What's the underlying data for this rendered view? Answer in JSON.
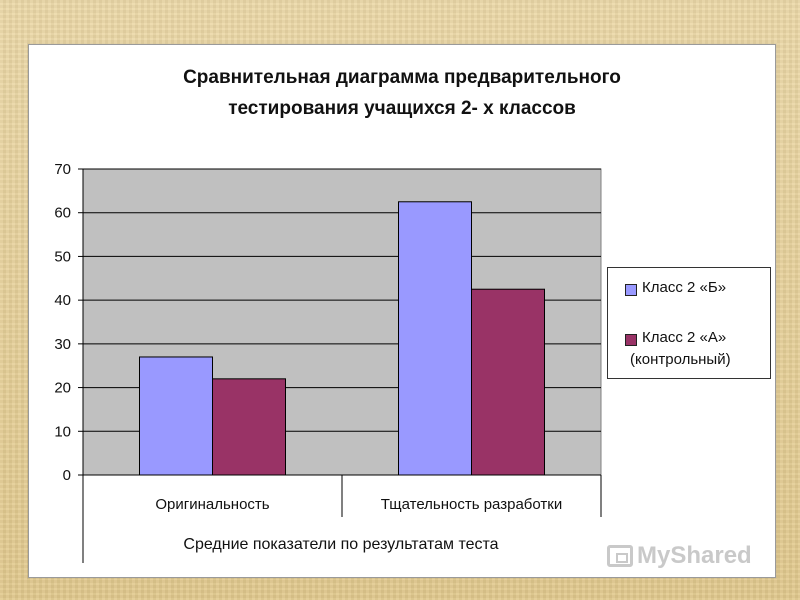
{
  "chart_data": {
    "type": "bar",
    "title_line1": "Сравнительная диаграмма предварительного",
    "title_line2": "тестирования учащихся 2- х классов",
    "xlabel": "Средние показатели по результатам теста",
    "ylabel": "",
    "ylim": [
      0,
      70
    ],
    "yticks": [
      0,
      10,
      20,
      30,
      40,
      50,
      60,
      70
    ],
    "categories": [
      "Оригинальность",
      "Тщательность разработки"
    ],
    "series": [
      {
        "name": "Класс 2 «Б»",
        "values": [
          27,
          62.5
        ],
        "color": "#9999ff"
      },
      {
        "name_line1": "Класс 2 «А»",
        "name_line2": "(контрольный)",
        "values": [
          22,
          42.5
        ],
        "color": "#993366"
      }
    ],
    "grid": true,
    "plot_background": "#c0c0c0",
    "legend_position": "right"
  },
  "watermark": {
    "text": "MyShared"
  }
}
